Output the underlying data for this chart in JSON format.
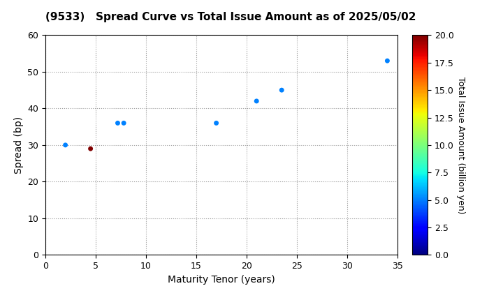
{
  "title": "(9533)   Spread Curve vs Total Issue Amount as of 2025/05/02",
  "xlabel": "Maturity Tenor (years)",
  "ylabel": "Spread (bp)",
  "colorbar_label": "Total Issue Amount (billion yen)",
  "xlim": [
    0,
    35
  ],
  "ylim": [
    0,
    60
  ],
  "xticks": [
    0,
    5,
    10,
    15,
    20,
    25,
    30,
    35
  ],
  "yticks": [
    0,
    10,
    20,
    30,
    40,
    50,
    60
  ],
  "scatter_x": [
    2,
    4.5,
    7.2,
    7.8,
    17,
    21,
    23.5,
    34
  ],
  "scatter_y": [
    30,
    29,
    36,
    36,
    36,
    42,
    45,
    53
  ],
  "scatter_amount": [
    5.0,
    20.0,
    5.0,
    5.0,
    5.0,
    5.0,
    5.0,
    5.0
  ],
  "cmap": "jet",
  "vmin": 0.0,
  "vmax": 20.0,
  "colorbar_ticks": [
    0.0,
    2.5,
    5.0,
    7.5,
    10.0,
    12.5,
    15.0,
    17.5,
    20.0
  ],
  "marker_size": 25,
  "background_color": "#ffffff",
  "title_fontsize": 11,
  "axis_fontsize": 10,
  "tick_fontsize": 9,
  "colorbar_fontsize": 9,
  "fig_width": 7.2,
  "fig_height": 4.2,
  "fig_dpi": 100
}
